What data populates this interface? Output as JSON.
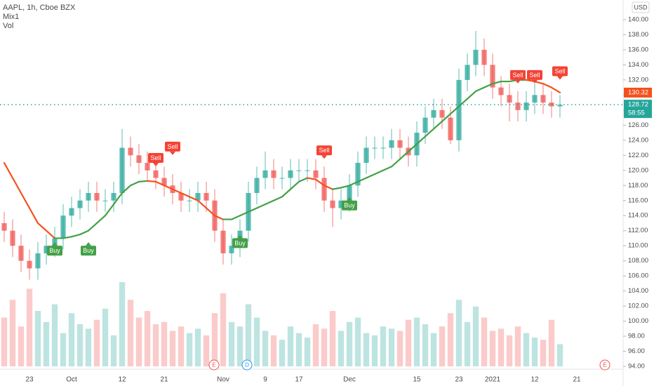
{
  "chart_data": {
    "type": "candlestick",
    "title": "AAPL, 1h, Cboe BZX",
    "indicators": [
      "Mix1",
      "Vol"
    ],
    "currency": "USD",
    "up_color": "#26a69a",
    "down_color": "#ef5350",
    "ma_rising_color": "#43a047",
    "ma_falling_color": "#f4511e",
    "buy_color": "#43a047",
    "sell_color": "#f44336",
    "categories": [
      null,
      null,
      null,
      "23",
      null,
      null,
      null,
      null,
      "Oct",
      null,
      null,
      null,
      null,
      null,
      "12",
      null,
      null,
      null,
      null,
      "21",
      null,
      null,
      null,
      null,
      null,
      null,
      "Nov",
      null,
      null,
      null,
      null,
      "9",
      null,
      null,
      null,
      "17",
      null,
      null,
      null,
      null,
      null,
      "Dec",
      null,
      null,
      null,
      null,
      null,
      null,
      null,
      "15",
      null,
      null,
      null,
      null,
      "23",
      null,
      null,
      null,
      "2021",
      null,
      null,
      null,
      null,
      "12",
      null,
      null,
      null,
      null,
      "21",
      null,
      null,
      null,
      null,
      null
    ],
    "open": [
      113,
      112,
      110,
      108,
      107,
      109,
      110,
      111,
      114,
      115,
      116,
      117,
      116,
      116,
      117,
      123,
      122,
      121,
      120,
      119,
      118,
      117,
      116,
      116,
      117,
      116,
      112,
      109,
      110,
      112,
      117,
      119,
      120,
      119,
      119,
      120,
      120,
      120,
      119,
      116,
      115,
      116,
      118,
      121,
      123,
      123,
      123,
      124,
      123,
      122,
      125,
      127,
      128,
      127,
      124,
      132,
      134,
      136,
      134,
      131,
      130,
      129,
      128,
      129,
      130,
      129,
      128.5,
      null,
      null,
      null,
      null,
      null,
      null,
      null
    ],
    "high": [
      114.5,
      113.5,
      111.5,
      109.5,
      110.5,
      111.5,
      112.5,
      115.5,
      116.5,
      117.5,
      118.5,
      118.5,
      117.5,
      118.5,
      125.5,
      124.5,
      123.5,
      122.5,
      121.5,
      120.5,
      119.5,
      118.5,
      117.5,
      118.5,
      118.5,
      117.5,
      113.5,
      111.5,
      113.5,
      118.5,
      120.5,
      122.5,
      121.5,
      120.5,
      121.5,
      121.5,
      121.5,
      121.5,
      120.5,
      117.5,
      117.5,
      119.5,
      122.5,
      124.5,
      124.5,
      124.5,
      125.5,
      125.5,
      124.5,
      126.5,
      128.5,
      129.5,
      129.5,
      128.5,
      133.5,
      135.5,
      138.5,
      137.5,
      135.5,
      132.5,
      131.5,
      130.5,
      130.5,
      131.5,
      131.5,
      130.5,
      130,
      null,
      null,
      null,
      null,
      null,
      null,
      null
    ],
    "low": [
      110.5,
      108.5,
      106.5,
      105.5,
      105.5,
      107.5,
      108.5,
      109.5,
      112.5,
      113.5,
      114.5,
      114.5,
      114.5,
      114.5,
      115.5,
      120.5,
      119.5,
      118.5,
      117.5,
      116.5,
      115.5,
      114.5,
      114.5,
      114.5,
      114.5,
      110.5,
      107.5,
      107.5,
      108.5,
      110.5,
      115.5,
      117.5,
      117.5,
      117.5,
      117.5,
      118.5,
      118.5,
      117.5,
      114.5,
      112.5,
      113.5,
      114.5,
      116.5,
      119.5,
      121.5,
      121.5,
      121.5,
      121.5,
      120.5,
      120.5,
      123.5,
      125.5,
      125.5,
      123.5,
      122.5,
      130.5,
      132.5,
      132.5,
      129.5,
      128.5,
      126.5,
      126.5,
      126.5,
      127.5,
      127.5,
      127,
      127,
      null,
      null,
      null,
      null,
      null,
      null,
      null
    ],
    "close": [
      112,
      110,
      108,
      107,
      109,
      110,
      111,
      114,
      115,
      116,
      117,
      116,
      116,
      117,
      123,
      122,
      121,
      120,
      119,
      118,
      117,
      116,
      116,
      117,
      116,
      112,
      109,
      110,
      112,
      117,
      119,
      120,
      119,
      119,
      120,
      120,
      120,
      119,
      116,
      115,
      116,
      118,
      121,
      123,
      123,
      123,
      124,
      123,
      122,
      125,
      127,
      128,
      127,
      124,
      132,
      134,
      136,
      134,
      131,
      130,
      129,
      128,
      129,
      130,
      129,
      128.5,
      128.72,
      null,
      null,
      null,
      null,
      null,
      null,
      null
    ],
    "volume": [
      22,
      30,
      18,
      35,
      25,
      20,
      28,
      15,
      24,
      19,
      17,
      21,
      26,
      14,
      38,
      30,
      22,
      25,
      19,
      20,
      16,
      18,
      15,
      17,
      14,
      24,
      33,
      20,
      18,
      28,
      22,
      16,
      14,
      12,
      18,
      15,
      13,
      19,
      17,
      25,
      16,
      20,
      22,
      15,
      14,
      18,
      17,
      16,
      21,
      22,
      19,
      15,
      18,
      24,
      30,
      20,
      27,
      22,
      16,
      17,
      14,
      18,
      15,
      13,
      12,
      21,
      10,
      null,
      null,
      null,
      null,
      null,
      null,
      null
    ],
    "ma": {
      "values": [
        121,
        119,
        117,
        115,
        113,
        112,
        111,
        111,
        111.2,
        111.5,
        112,
        113,
        114,
        115.5,
        117,
        118,
        118.5,
        118.6,
        118.5,
        118,
        117.5,
        117,
        116.5,
        116,
        115,
        114,
        113.5,
        113.5,
        114,
        114.5,
        115,
        115.5,
        116,
        116.5,
        117.5,
        118.5,
        119,
        118.8,
        118,
        117.5,
        117.7,
        118,
        118.5,
        119,
        119.5,
        120,
        120.5,
        121.5,
        122.5,
        123.5,
        124.5,
        125.5,
        126.5,
        127.5,
        128.5,
        129.5,
        130.5,
        131,
        131.5,
        131.8,
        131.8,
        132,
        132,
        131.8,
        131.5,
        131,
        130.32,
        null,
        null,
        null,
        null,
        null,
        null,
        null
      ]
    },
    "buy_signals": {
      "name": "Buy",
      "values": [
        null,
        null,
        null,
        null,
        null,
        null,
        110,
        null,
        null,
        null,
        110,
        null,
        null,
        null,
        null,
        null,
        null,
        null,
        null,
        null,
        null,
        null,
        null,
        null,
        null,
        null,
        null,
        null,
        111,
        null,
        null,
        null,
        null,
        null,
        null,
        null,
        null,
        null,
        null,
        null,
        null,
        116,
        null,
        null,
        null,
        null,
        null,
        null,
        null,
        null,
        null,
        null,
        null,
        null,
        null,
        null,
        null,
        null,
        null,
        null,
        null,
        null,
        null,
        null,
        null,
        null,
        null,
        null,
        null,
        null,
        null,
        null,
        null,
        null
      ]
    },
    "sell_signals": {
      "name": "Sell",
      "values": [
        null,
        null,
        null,
        null,
        null,
        null,
        null,
        null,
        null,
        null,
        null,
        null,
        null,
        null,
        null,
        null,
        null,
        null,
        121,
        null,
        122.5,
        null,
        null,
        null,
        null,
        null,
        null,
        null,
        null,
        null,
        null,
        null,
        null,
        null,
        null,
        null,
        null,
        null,
        122,
        null,
        null,
        null,
        null,
        null,
        null,
        null,
        null,
        null,
        null,
        null,
        null,
        null,
        null,
        null,
        null,
        null,
        null,
        null,
        null,
        null,
        null,
        132,
        null,
        132,
        null,
        null,
        132.5,
        null,
        null,
        null,
        null,
        null,
        null,
        null
      ]
    },
    "last_price": 128.72,
    "countdown": "58:55",
    "events": [
      "E",
      "D",
      "E"
    ],
    "ylim": [
      94,
      140
    ],
    "yticks": [
      {
        "value": 94,
        "label": "94.00"
      },
      {
        "value": 96,
        "label": "96.00"
      },
      {
        "value": 98,
        "label": "98.00"
      },
      {
        "value": 100,
        "label": "100.00"
      },
      {
        "value": 102,
        "label": "102.00"
      },
      {
        "value": 104,
        "label": "104.00"
      },
      {
        "value": 106,
        "label": "106.00"
      },
      {
        "value": 108,
        "label": "108.00"
      },
      {
        "value": 110,
        "label": "110.00"
      },
      {
        "value": 112,
        "label": "112.00"
      },
      {
        "value": 114,
        "label": "114.00"
      },
      {
        "value": 116,
        "label": "116.00"
      },
      {
        "value": 118,
        "label": "118.00"
      },
      {
        "value": 120,
        "label": "120.00"
      },
      {
        "value": 122,
        "label": "122.00"
      },
      {
        "value": 124,
        "label": "124.00"
      },
      {
        "value": 126,
        "label": "126.00"
      },
      {
        "value": 128,
        "label": "128.00"
      },
      {
        "value": 130,
        "label": "130.00"
      },
      {
        "value": 132,
        "label": "132.00"
      },
      {
        "value": 134,
        "label": "134.00"
      },
      {
        "value": 136,
        "label": "136.00"
      },
      {
        "value": 138,
        "label": "138.00"
      },
      {
        "value": 140,
        "label": "140.00"
      }
    ]
  }
}
